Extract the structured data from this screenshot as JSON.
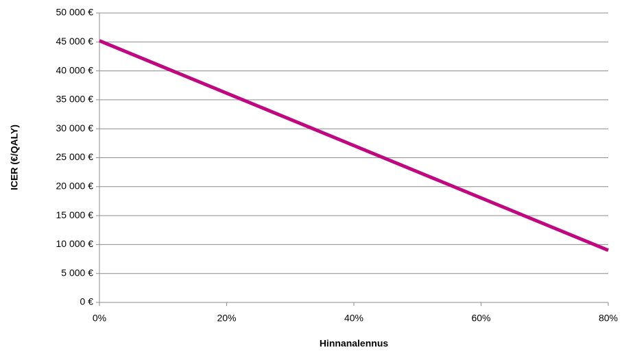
{
  "chart_data": {
    "type": "line",
    "xlabel": "Hinnanalennus",
    "ylabel": "ICER (€/QALY)",
    "x": [
      0,
      80
    ],
    "series": [
      {
        "color": "#c0077f",
        "values": [
          45200,
          9000
        ]
      }
    ],
    "xlim": [
      0,
      80
    ],
    "xticks": [
      {
        "value": 0,
        "label": "0%"
      },
      {
        "value": 20,
        "label": "20%"
      },
      {
        "value": 40,
        "label": "40%"
      },
      {
        "value": 60,
        "label": "60%"
      },
      {
        "value": 80,
        "label": "80%"
      }
    ],
    "ylim": [
      0,
      50000
    ],
    "yticks": [
      {
        "value": 0,
        "label": "0 €"
      },
      {
        "value": 5000,
        "label": "5 000 €"
      },
      {
        "value": 10000,
        "label": "10 000 €"
      },
      {
        "value": 15000,
        "label": "15 000 €"
      },
      {
        "value": 20000,
        "label": "20 000 €"
      },
      {
        "value": 25000,
        "label": "25 000 €"
      },
      {
        "value": 30000,
        "label": "30 000 €"
      },
      {
        "value": 35000,
        "label": "35 000 €"
      },
      {
        "value": 40000,
        "label": "40 000 €"
      },
      {
        "value": 45000,
        "label": "45 000 €"
      },
      {
        "value": 50000,
        "label": "50 000 €"
      }
    ],
    "grid": true
  }
}
